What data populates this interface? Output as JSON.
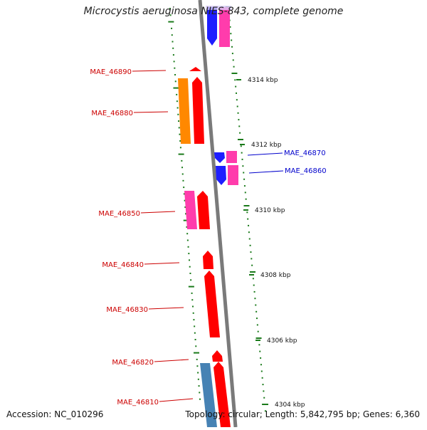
{
  "title": "Microcystis aeruginosa NIES-843, complete genome",
  "footer": {
    "accession": "Accession: NC_010296",
    "summary": "Topology: circular; Length: 5,842,795 bp; Genes: 6,360"
  },
  "kbp_labels": [
    "4314 kbp",
    "4312 kbp",
    "4310 kbp",
    "4308 kbp",
    "4306 kbp",
    "4304 kbp"
  ],
  "genes": [
    {
      "label": "MAE_46890",
      "strand": "forward",
      "color": "#ff0000"
    },
    {
      "label": "MAE_46880",
      "strand": "forward",
      "color": "#ff0000"
    },
    {
      "label": "MAE_46870",
      "strand": "reverse",
      "color": "#0000ff"
    },
    {
      "label": "MAE_46860",
      "strand": "reverse",
      "color": "#0000ff"
    },
    {
      "label": "MAE_46850",
      "strand": "forward",
      "color": "#ff0000"
    },
    {
      "label": "MAE_46840",
      "strand": "forward",
      "color": "#ff0000"
    },
    {
      "label": "MAE_46830",
      "strand": "forward",
      "color": "#ff0000"
    },
    {
      "label": "MAE_46820",
      "strand": "forward",
      "color": "#ff0000"
    },
    {
      "label": "MAE_46810",
      "strand": "forward",
      "color": "#ff0000"
    }
  ],
  "colors": {
    "forward_label": "#cc0000",
    "reverse_label": "#0000cc",
    "tick": "#1a7a1a",
    "backbone": "#888888"
  }
}
